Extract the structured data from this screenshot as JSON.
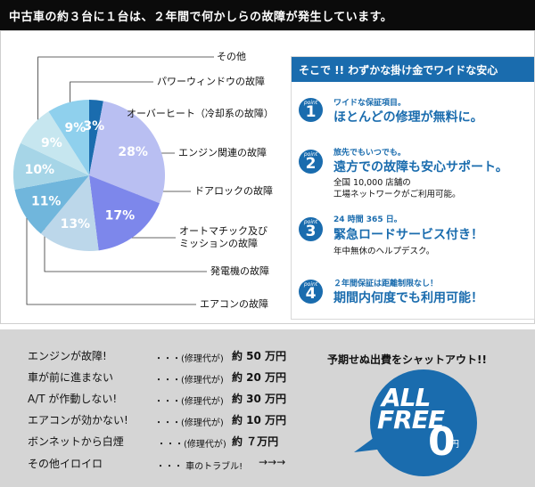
{
  "header": {
    "title": "中古車の約３台に１台は、２年間で何かしらの故障が発生しています。"
  },
  "chart_data": {
    "type": "pie",
    "categories": [
      "オーバーヒート（冷却系の故障）",
      "エンジン関連の故障",
      "ドアロックの故障",
      "オートマチック及びミッションの故障",
      "発電機の故障",
      "エアコンの故障",
      "その他",
      "パワーウィンドウの故障"
    ],
    "values": [
      3,
      28,
      17,
      13,
      11,
      10,
      9,
      9
    ],
    "labels": [
      "3%",
      "28%",
      "17%",
      "13%",
      "11%",
      "10%",
      "9%",
      "9%"
    ]
  },
  "legend": {
    "other": "その他",
    "power_window": "パワーウィンドウの故障",
    "overheat": "オーバーヒート（冷却系の故障）",
    "engine": "エンジン関連の故障",
    "door_lock": "ドアロックの故障",
    "mission_1": "オートマチック及び",
    "mission_2": "ミッションの故障",
    "generator": "発電機の故障",
    "aircon": "エアコンの故障"
  },
  "panel": {
    "title": "そこで !! わずかな掛け金でワイドな安心",
    "points": [
      {
        "tag": "point",
        "num": "1",
        "small": "ワイドな保証項目。",
        "big": "ほとんどの修理が無料に。",
        "notes": []
      },
      {
        "tag": "point",
        "num": "2",
        "small": "旅先でもいつでも。",
        "big": "遠方での故障も安心サポート。",
        "notes": [
          "全国 10,000 店舗の",
          "工場ネットワークがご利用可能。"
        ]
      },
      {
        "tag": "point",
        "num": "3",
        "small": "24 時間 365 日。",
        "big": "緊急ロードサービス付き！",
        "notes": [
          "年中無休のヘルプデスク。"
        ]
      },
      {
        "tag": "point",
        "num": "4",
        "small": "２年間保証は距離制限なし！",
        "big": "期間内何度でも利用可能！",
        "notes": []
      }
    ]
  },
  "costs": [
    {
      "label": "エンジンが故障!",
      "dots": "・・・(修理代が)",
      "amount": "約 50 万円"
    },
    {
      "label": "車が前に進まない",
      "dots": "・・・(修理代が)",
      "amount": "約 20 万円"
    },
    {
      "label": "A/T が作動しない!",
      "dots": "・・・(修理代が)",
      "amount": "約 30 万円"
    },
    {
      "label": "エアコンが効かない!",
      "dots": "・・・(修理代が)",
      "amount": "約 10 万円"
    },
    {
      "label": "ボンネットから白煙",
      "dots": "・・・(修理代が)",
      "amount": "約 ７万円"
    },
    {
      "label": "その他イロイロ",
      "dots": "・・・ 車のトラブル!",
      "amount": "→→→"
    }
  ],
  "promo": {
    "headline": "予期せぬ出費をシャットアウト!!",
    "free_line1": "ALL",
    "free_line2": "FREE",
    "zero": "0",
    "yen": "円"
  },
  "colors": {
    "brand_blue": "#1a6cae",
    "header_bg": "#0b0b0b",
    "bottom_bg": "#d5d5d5"
  }
}
